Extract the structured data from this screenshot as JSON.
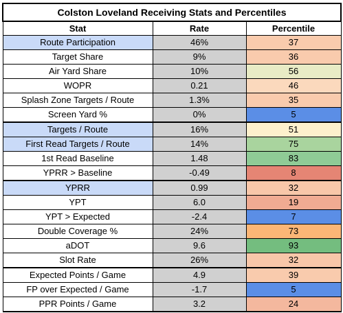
{
  "title": "Colston Loveland Receiving Stats and Percentiles",
  "columns": [
    "Stat",
    "Rate",
    "Percentile"
  ],
  "rows": [
    {
      "stat": "Route Participation",
      "rate": "46%",
      "percentile": "37",
      "highlight": true,
      "color": "#f9cbad"
    },
    {
      "stat": "Target Share",
      "rate": "9%",
      "percentile": "36",
      "highlight": false,
      "color": "#f9cbad"
    },
    {
      "stat": "Air Yard Share",
      "rate": "10%",
      "percentile": "56",
      "highlight": false,
      "color": "#e8ebc5"
    },
    {
      "stat": "WOPR",
      "rate": "0.21",
      "percentile": "46",
      "highlight": false,
      "color": "#fbd9bd"
    },
    {
      "stat": "Splash Zone Targets / Route",
      "rate": "1.3%",
      "percentile": "35",
      "highlight": false,
      "color": "#f9cbad"
    },
    {
      "stat": "Screen Yard %",
      "rate": "0%",
      "percentile": "5",
      "highlight": false,
      "color": "#5b8ee6"
    },
    {
      "stat": "Targets / Route",
      "rate": "16%",
      "percentile": "51",
      "highlight": true,
      "color": "#fdf0cc",
      "sep": true
    },
    {
      "stat": "First Read Targets / Route",
      "rate": "14%",
      "percentile": "75",
      "highlight": true,
      "color": "#a9d49e"
    },
    {
      "stat": "1st Read Baseline",
      "rate": "1.48",
      "percentile": "83",
      "highlight": false,
      "color": "#8fcb96"
    },
    {
      "stat": "YPRR > Baseline",
      "rate": "-0.49",
      "percentile": "8",
      "highlight": false,
      "color": "#e58574"
    },
    {
      "stat": "YPRR",
      "rate": "0.99",
      "percentile": "32",
      "highlight": true,
      "color": "#f8c7a9",
      "sep": true
    },
    {
      "stat": "YPT",
      "rate": "6.0",
      "percentile": "19",
      "highlight": false,
      "color": "#f0ab92"
    },
    {
      "stat": "YPT > Expected",
      "rate": "-2.4",
      "percentile": "7",
      "highlight": false,
      "color": "#5b8ee6"
    },
    {
      "stat": "Double Coverage %",
      "rate": "24%",
      "percentile": "73",
      "highlight": false,
      "color": "#fbb676"
    },
    {
      "stat": "aDOT",
      "rate": "9.6",
      "percentile": "93",
      "highlight": false,
      "color": "#74bd7f"
    },
    {
      "stat": "Slot Rate",
      "rate": "26%",
      "percentile": "32",
      "highlight": false,
      "color": "#f8c7a9"
    },
    {
      "stat": "Expected Points / Game",
      "rate": "4.9",
      "percentile": "39",
      "highlight": false,
      "color": "#f9cbad",
      "sep": true
    },
    {
      "stat": "FP over Expected / Game",
      "rate": "-1.7",
      "percentile": "5",
      "highlight": false,
      "color": "#5b8ee6"
    },
    {
      "stat": "PPR Points / Game",
      "rate": "3.2",
      "percentile": "24",
      "highlight": false,
      "color": "#f4b89e"
    }
  ]
}
